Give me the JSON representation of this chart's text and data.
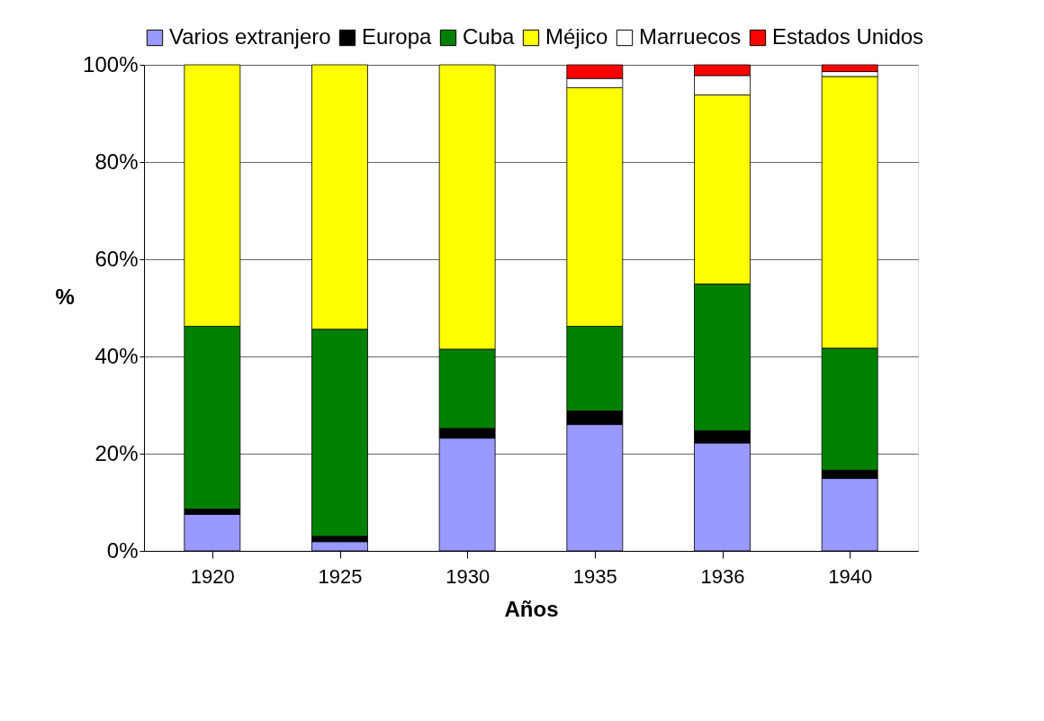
{
  "chart_data": {
    "type": "bar",
    "stacked": true,
    "xlabel": "Años",
    "ylabel": "%",
    "categories": [
      "1920",
      "1925",
      "1930",
      "1935",
      "1936",
      "1940"
    ],
    "series": [
      {
        "name": "Varios extranjero",
        "color": "#9999ff",
        "values": [
          7.5,
          1.9,
          23.2,
          26.0,
          22.2,
          14.9
        ]
      },
      {
        "name": "Europa",
        "color": "#000000",
        "values": [
          1.1,
          1.1,
          2.0,
          2.8,
          2.5,
          1.7
        ]
      },
      {
        "name": "Cuba",
        "color": "#008000",
        "values": [
          37.6,
          42.6,
          16.3,
          17.4,
          30.2,
          25.1
        ]
      },
      {
        "name": "Méjico",
        "color": "#ffff00",
        "values": [
          53.8,
          54.4,
          58.5,
          49.1,
          38.9,
          55.9
        ]
      },
      {
        "name": "Marruecos",
        "color": "#ffffff",
        "values": [
          null,
          null,
          null,
          1.9,
          4.0,
          1.0
        ]
      },
      {
        "name": "Estados Unidos",
        "color": "#ff0000",
        "values": [
          null,
          null,
          null,
          2.8,
          2.2,
          1.4
        ]
      }
    ],
    "ylim": [
      0,
      100
    ],
    "yticks": [
      {
        "value": 0,
        "label": "0%"
      },
      {
        "value": 20,
        "label": "20%"
      },
      {
        "value": 40,
        "label": "40%"
      },
      {
        "value": 60,
        "label": "60%"
      },
      {
        "value": 80,
        "label": "80%"
      },
      {
        "value": 100,
        "label": "100%"
      }
    ],
    "grid": "y",
    "legend": "top"
  }
}
